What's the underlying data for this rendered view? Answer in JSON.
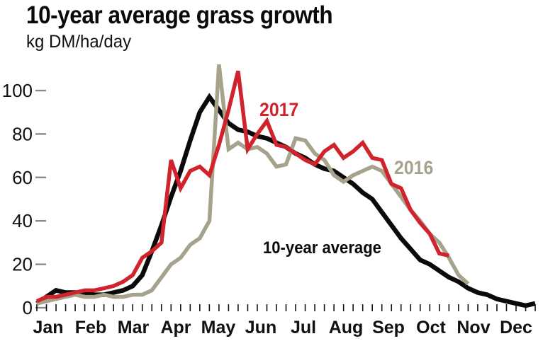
{
  "title": "10-year average grass growth",
  "subtitle": "kg DM/ha/day",
  "chart_data": {
    "type": "line",
    "title": "10-year average grass growth",
    "ylabel": "kg DM/ha/day",
    "xlabel": "",
    "ylim": [
      0,
      115
    ],
    "yticks": [
      0,
      20,
      40,
      60,
      80,
      100
    ],
    "grid": false,
    "legend_position": "inline-annotations",
    "x_axis": {
      "tick_unit": "week",
      "weeks_shown": 53,
      "month_labels": [
        "Jan",
        "Feb",
        "Mar",
        "Apr",
        "May",
        "Jun",
        "Jul",
        "Aug",
        "Sep",
        "Oct",
        "Nov",
        "Dec"
      ]
    },
    "series": [
      {
        "name": "10-year average",
        "color": "#0a0a0a",
        "values": [
          2,
          5,
          8,
          7,
          7,
          7,
          6,
          6,
          7,
          8,
          10,
          15,
          26,
          38,
          51,
          63,
          77,
          90,
          97,
          91,
          85,
          82,
          81,
          79,
          78,
          76,
          74,
          71,
          69,
          66,
          64,
          63,
          60,
          57,
          53,
          50,
          44,
          38,
          32,
          27,
          22,
          20,
          17,
          14,
          12,
          9,
          7,
          6,
          4,
          3,
          2,
          1,
          2
        ]
      },
      {
        "name": "2016",
        "color": "#a6a28c",
        "values": [
          2,
          3,
          4,
          5,
          6,
          5,
          5,
          6,
          5,
          5,
          6,
          6,
          8,
          14,
          20,
          23,
          29,
          32,
          40,
          112,
          73,
          76,
          73,
          74,
          71,
          65,
          66,
          78,
          77,
          71,
          68,
          61,
          58,
          61,
          63,
          65,
          63,
          57,
          51,
          45,
          40,
          34,
          30,
          23,
          15,
          11
        ]
      },
      {
        "name": "2017",
        "color": "#d0232b",
        "values": [
          3,
          5,
          5,
          6,
          7,
          8,
          8,
          9,
          10,
          12,
          15,
          23,
          26,
          30,
          68,
          55,
          63,
          65,
          61,
          75,
          91,
          109,
          73,
          80,
          86,
          75,
          74,
          71,
          68,
          66,
          72,
          75,
          69,
          72,
          76,
          69,
          68,
          57,
          55,
          45,
          39,
          34,
          25,
          24
        ]
      }
    ]
  }
}
